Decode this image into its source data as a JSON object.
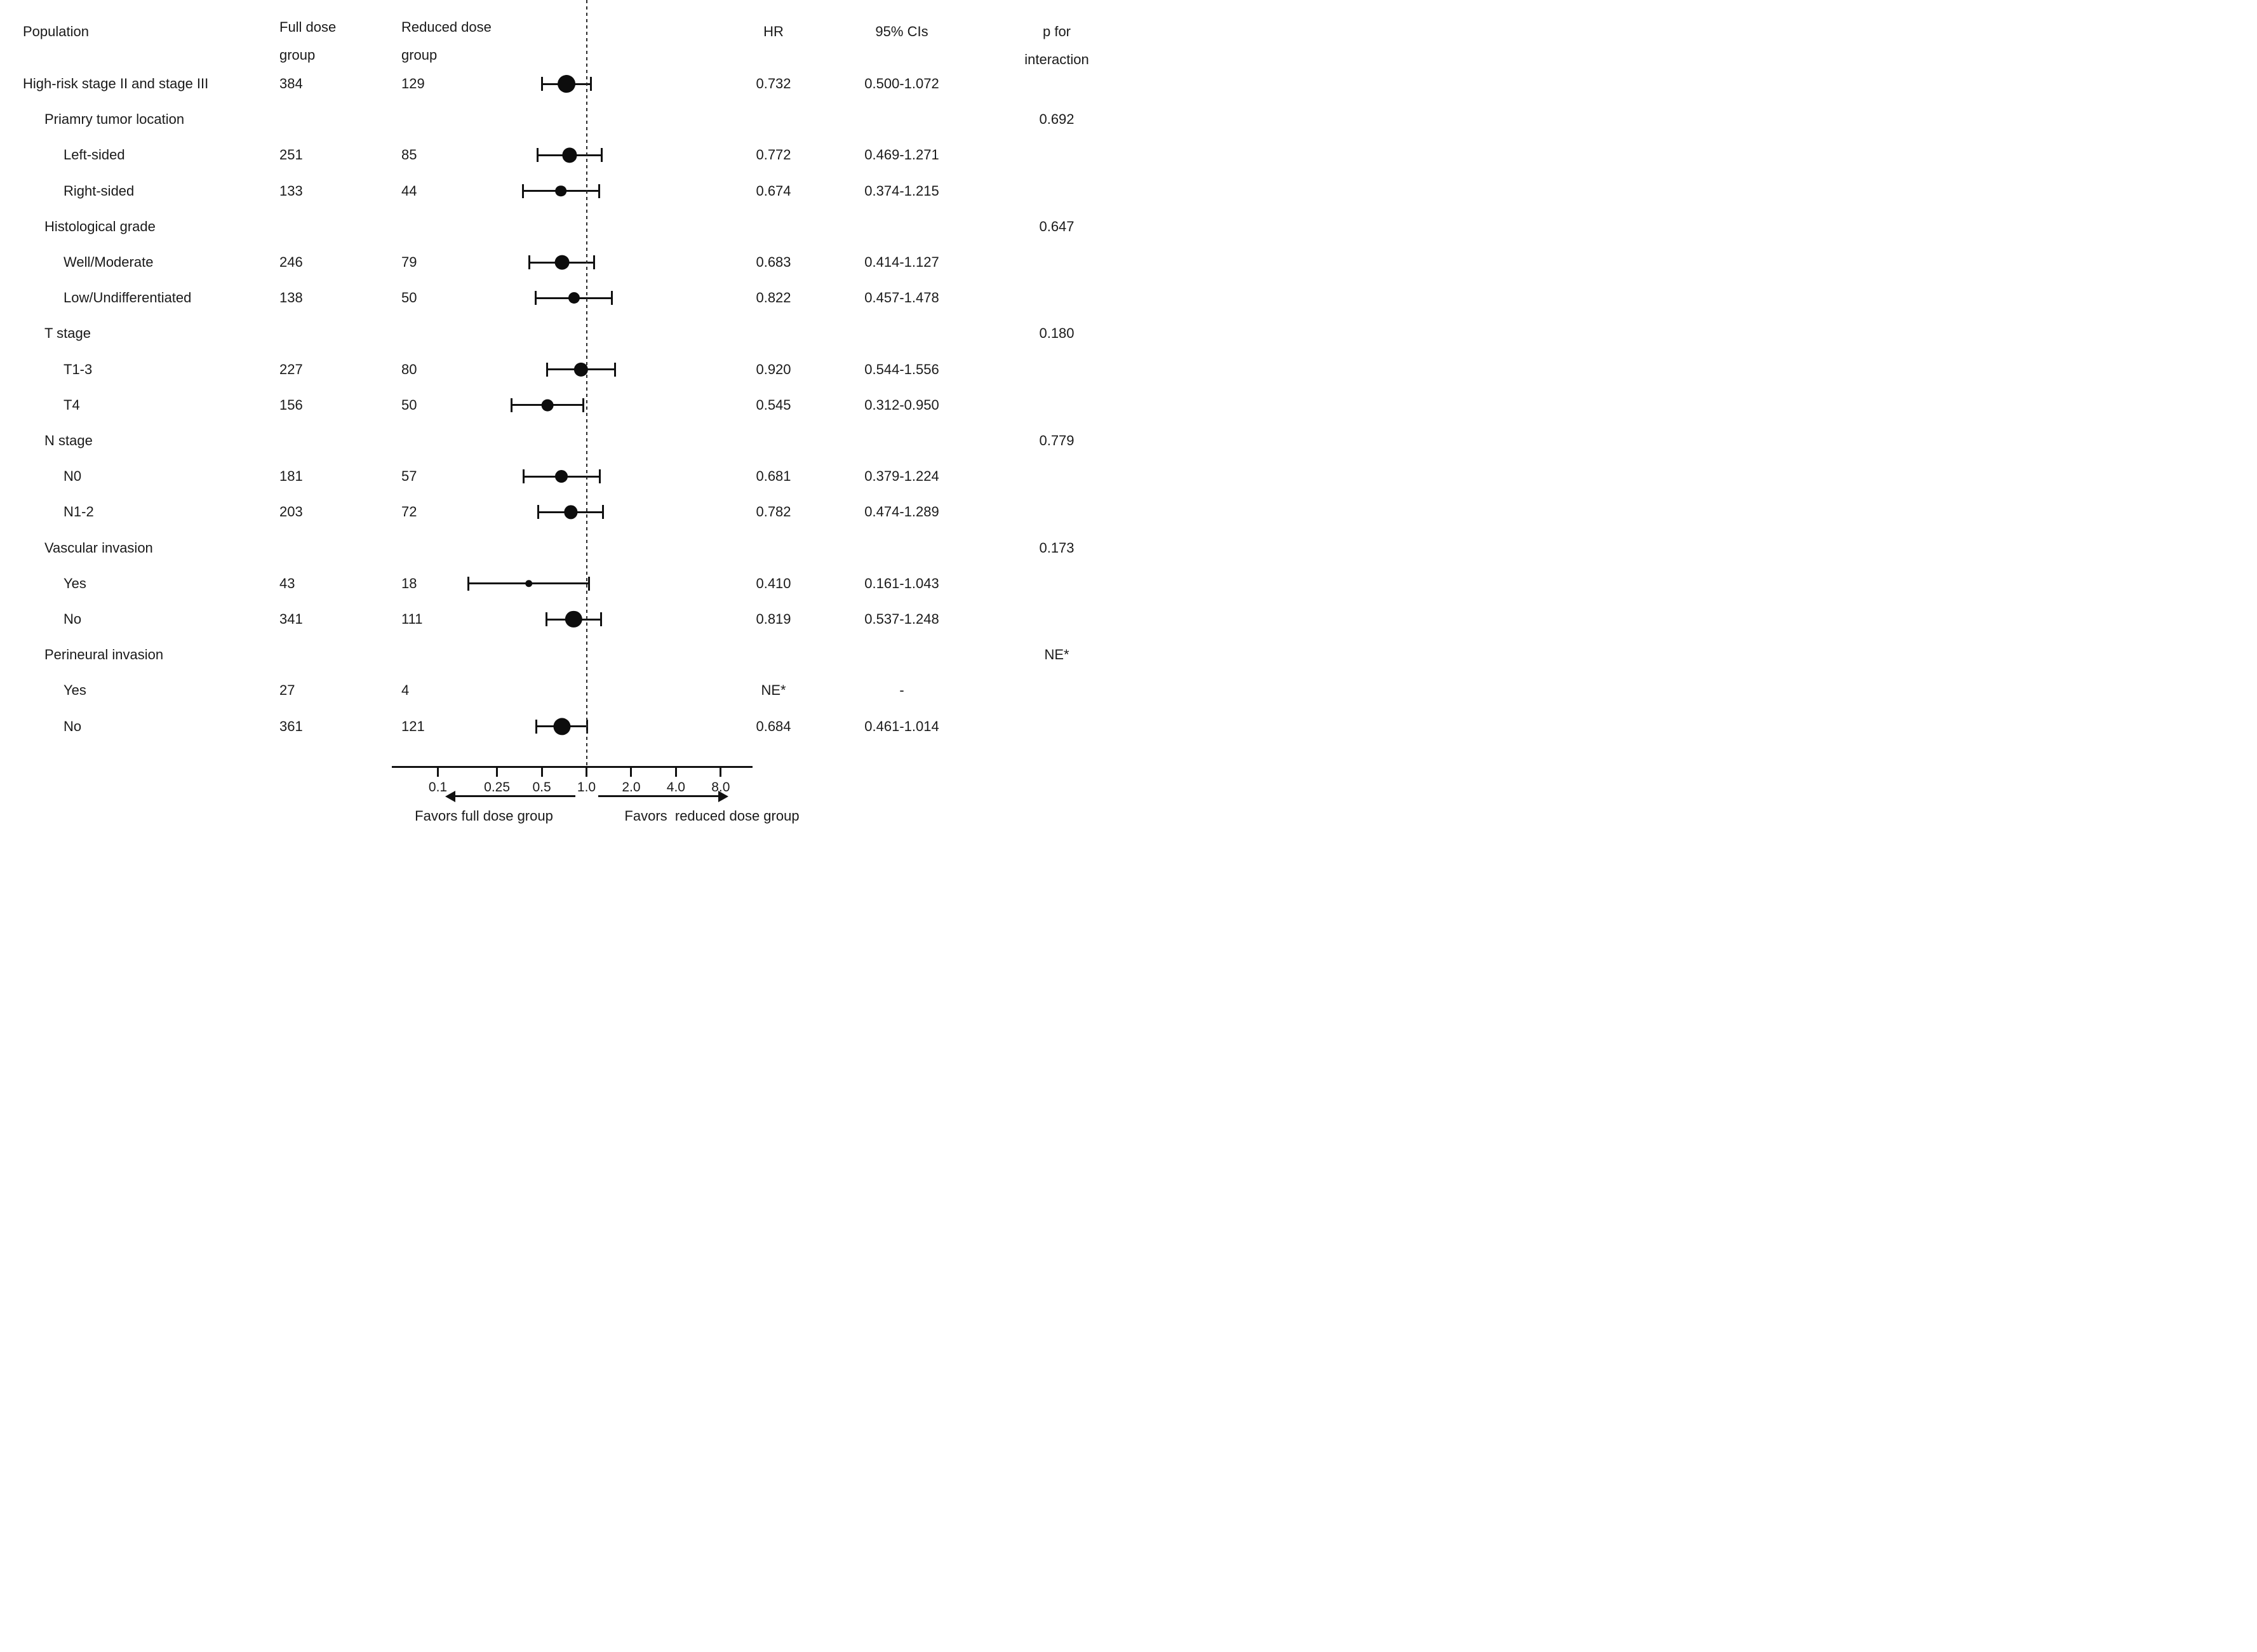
{
  "figure": {
    "columns": {
      "population": "Population",
      "full_dose": "Full dose\ngroup",
      "reduced_dose": "Reduced dose\ngroup",
      "hr": "HR",
      "ci": "95% CIs",
      "p": "p for interaction"
    },
    "footer": {
      "favors_left": "Favors full dose group",
      "favors_right": "Favors  reduced dose group"
    }
  },
  "colors": {
    "background": "#ffffff",
    "text": "#1a1a1a",
    "marker": "#0d0d0d"
  },
  "chart_data": {
    "type": "forest",
    "x_scale": "log",
    "x_ticks": [
      0.1,
      0.25,
      0.5,
      1.0,
      2.0,
      4.0,
      8.0
    ],
    "x_tick_labels": [
      "0.1",
      "0.25",
      "0.5",
      "1.0",
      "2.0",
      "4.0",
      "8.0"
    ],
    "x_range": [
      0.1,
      8.0
    ],
    "reference_line": 1.0,
    "legend_position": "none",
    "grid": false,
    "rows": [
      {
        "label": "High-risk stage II and stage III",
        "indent": 0,
        "full": "384",
        "reduced": "129",
        "hr": 0.732,
        "lo": 0.5,
        "hi": 1.072,
        "hr_text": "0.732",
        "ci_text": "0.500-1.072",
        "p": ""
      },
      {
        "label": "Priamry tumor location",
        "indent": 1,
        "full": "",
        "reduced": "",
        "hr": null,
        "lo": null,
        "hi": null,
        "hr_text": "",
        "ci_text": "",
        "p": "0.692"
      },
      {
        "label": "Left-sided",
        "indent": 2,
        "full": "251",
        "reduced": "85",
        "hr": 0.772,
        "lo": 0.469,
        "hi": 1.271,
        "hr_text": "0.772",
        "ci_text": "0.469-1.271",
        "p": ""
      },
      {
        "label": "Right-sided",
        "indent": 2,
        "full": "133",
        "reduced": "44",
        "hr": 0.674,
        "lo": 0.374,
        "hi": 1.215,
        "hr_text": "0.674",
        "ci_text": "0.374-1.215",
        "p": ""
      },
      {
        "label": "Histological grade",
        "indent": 1,
        "full": "",
        "reduced": "",
        "hr": null,
        "lo": null,
        "hi": null,
        "hr_text": "",
        "ci_text": "",
        "p": "0.647"
      },
      {
        "label": "Well/Moderate",
        "indent": 2,
        "full": "246",
        "reduced": "79",
        "hr": 0.683,
        "lo": 0.414,
        "hi": 1.127,
        "hr_text": "0.683",
        "ci_text": "0.414-1.127",
        "p": ""
      },
      {
        "label": "Low/Undifferentiated",
        "indent": 2,
        "full": "138",
        "reduced": "50",
        "hr": 0.822,
        "lo": 0.457,
        "hi": 1.478,
        "hr_text": "0.822",
        "ci_text": "0.457-1.478",
        "p": ""
      },
      {
        "label": "T stage",
        "indent": 1,
        "full": "",
        "reduced": "",
        "hr": null,
        "lo": null,
        "hi": null,
        "hr_text": "",
        "ci_text": "",
        "p": "0.180"
      },
      {
        "label": "T1-3",
        "indent": 2,
        "full": "227",
        "reduced": "80",
        "hr": 0.92,
        "lo": 0.544,
        "hi": 1.556,
        "hr_text": "0.920",
        "ci_text": "0.544-1.556",
        "p": ""
      },
      {
        "label": "T4",
        "indent": 2,
        "full": "156",
        "reduced": "50",
        "hr": 0.545,
        "lo": 0.312,
        "hi": 0.95,
        "hr_text": "0.545",
        "ci_text": "0.312-0.950",
        "p": ""
      },
      {
        "label": "N stage",
        "indent": 1,
        "full": "",
        "reduced": "",
        "hr": null,
        "lo": null,
        "hi": null,
        "hr_text": "",
        "ci_text": "",
        "p": "0.779"
      },
      {
        "label": "N0",
        "indent": 2,
        "full": "181",
        "reduced": "57",
        "hr": 0.681,
        "lo": 0.379,
        "hi": 1.224,
        "hr_text": "0.681",
        "ci_text": "0.379-1.224",
        "p": ""
      },
      {
        "label": "N1-2",
        "indent": 2,
        "full": "203",
        "reduced": "72",
        "hr": 0.782,
        "lo": 0.474,
        "hi": 1.289,
        "hr_text": "0.782",
        "ci_text": "0.474-1.289",
        "p": ""
      },
      {
        "label": "Vascular invasion",
        "indent": 1,
        "full": "",
        "reduced": "",
        "hr": null,
        "lo": null,
        "hi": null,
        "hr_text": "",
        "ci_text": "",
        "p": "0.173"
      },
      {
        "label": "Yes",
        "indent": 2,
        "full": "43",
        "reduced": "18",
        "hr": 0.41,
        "lo": 0.161,
        "hi": 1.043,
        "hr_text": "0.410",
        "ci_text": "0.161-1.043",
        "p": ""
      },
      {
        "label": "No",
        "indent": 2,
        "full": "341",
        "reduced": "111",
        "hr": 0.819,
        "lo": 0.537,
        "hi": 1.248,
        "hr_text": "0.819",
        "ci_text": "0.537-1.248",
        "p": ""
      },
      {
        "label": "Perineural invasion",
        "indent": 1,
        "full": "",
        "reduced": "",
        "hr": null,
        "lo": null,
        "hi": null,
        "hr_text": "",
        "ci_text": "",
        "p": "NE*"
      },
      {
        "label": "Yes",
        "indent": 2,
        "full": "27",
        "reduced": "4",
        "hr": null,
        "lo": null,
        "hi": null,
        "hr_text": "NE*",
        "ci_text": "-",
        "p": ""
      },
      {
        "label": "No",
        "indent": 2,
        "full": "361",
        "reduced": "121",
        "hr": 0.684,
        "lo": 0.461,
        "hi": 1.014,
        "hr_text": "0.684",
        "ci_text": "0.461-1.014",
        "p": ""
      }
    ]
  }
}
